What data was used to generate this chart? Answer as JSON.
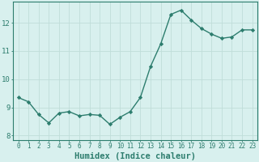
{
  "x": [
    0,
    1,
    2,
    3,
    4,
    5,
    6,
    7,
    8,
    9,
    10,
    11,
    12,
    13,
    14,
    15,
    16,
    17,
    18,
    19,
    20,
    21,
    22,
    23
  ],
  "y": [
    9.35,
    9.2,
    8.75,
    8.45,
    8.8,
    8.85,
    8.7,
    8.75,
    8.72,
    8.4,
    8.65,
    8.85,
    9.35,
    10.45,
    11.25,
    12.3,
    12.45,
    12.1,
    11.8,
    11.6,
    11.45,
    11.5,
    11.75,
    11.75
  ],
  "line_color": "#2d7d6e",
  "bg_color": "#d8f0ee",
  "grid_color": "#c0ddd9",
  "xlabel": "Humidex (Indice chaleur)",
  "xlim": [
    -0.5,
    23.5
  ],
  "ylim": [
    7.85,
    12.75
  ],
  "yticks": [
    8,
    9,
    10,
    11,
    12
  ],
  "xticks": [
    0,
    1,
    2,
    3,
    4,
    5,
    6,
    7,
    8,
    9,
    10,
    11,
    12,
    13,
    14,
    15,
    16,
    17,
    18,
    19,
    20,
    21,
    22,
    23
  ],
  "marker": "D",
  "marker_size": 2.2,
  "line_width": 1.0,
  "xlabel_fontsize": 7.5,
  "tick_fontsize": 6.5,
  "axis_color": "#2d7d6e"
}
